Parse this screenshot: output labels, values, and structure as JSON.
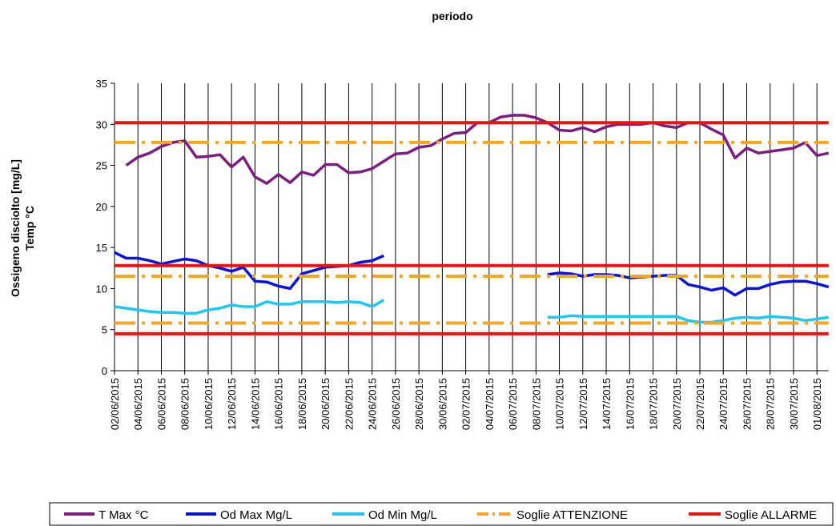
{
  "chart_data": {
    "type": "line",
    "title": "periodo",
    "ylabel": [
      "Ossigeno disciolto [mg/L]",
      "Temp °C"
    ],
    "categories": [
      "02/06/2015",
      null,
      "04/06/2015",
      null,
      "06/06/2015",
      null,
      "08/06/2015",
      null,
      "10/06/2015",
      null,
      "12/06/2015",
      null,
      "14/06/2015",
      null,
      "16/06/2015",
      null,
      "18/06/2015",
      null,
      "20/06/2015",
      null,
      "22/06/2015",
      null,
      "24/06/2015",
      null,
      "26/06/2015",
      null,
      "28/06/2015",
      null,
      "30/06/2015",
      null,
      "02/07/2015",
      null,
      "04/07/2015",
      null,
      "06/07/2015",
      null,
      "08/07/2015",
      null,
      "10/07/2015",
      null,
      "12/07/2015",
      null,
      "14/07/2015",
      null,
      "16/07/2015",
      null,
      "18/07/2015",
      null,
      "20/07/2015",
      null,
      "22/07/2015",
      null,
      "24/07/2015",
      null,
      "26/07/2015",
      null,
      "28/07/2015",
      null,
      "30/07/2015",
      null,
      "01/08/2015",
      null
    ],
    "series": [
      {
        "name": "T Max °C",
        "color": "#7b1f7e",
        "values": [
          null,
          25,
          26,
          26.5,
          27.3,
          27.8,
          28,
          26,
          26.1,
          26.3,
          24.8,
          26,
          23.6,
          22.8,
          23.9,
          22.9,
          24.2,
          23.8,
          25.1,
          25.1,
          24.1,
          24.2,
          24.6,
          25.5,
          26.4,
          26.5,
          27.2,
          27.4,
          28.2,
          28.9,
          29,
          30.2,
          30.2,
          30.9,
          31.1,
          31.1,
          30.8,
          30.2,
          29.3,
          29.2,
          29.6,
          29.1,
          29.7,
          30,
          30,
          30,
          30.2,
          29.8,
          29.6,
          30.2,
          30.2,
          29.4,
          28.7,
          25.9,
          27.1,
          26.5,
          26.7,
          26.9,
          27.1,
          27.8,
          26.2,
          26.5
        ]
      },
      {
        "name": "Od Max Mg/L",
        "color": "#0a14d6",
        "values": [
          14.4,
          13.7,
          13.7,
          13.4,
          13,
          13.3,
          13.6,
          13.4,
          12.8,
          12.5,
          12.1,
          12.6,
          10.9,
          10.8,
          10.3,
          10,
          11.8,
          12.2,
          12.6,
          12.7,
          12.8,
          13.2,
          13.4,
          14,
          null,
          null,
          null,
          null,
          null,
          null,
          null,
          null,
          null,
          null,
          null,
          null,
          null,
          11.7,
          11.9,
          11.8,
          11.5,
          11.7,
          11.7,
          11.6,
          11.3,
          11.4,
          11.5,
          11.6,
          11.6,
          10.5,
          10.2,
          9.8,
          10.1,
          9.2,
          10,
          10,
          10.5,
          10.8,
          10.9,
          10.9,
          10.6,
          10.2
        ]
      },
      {
        "name": "Od Min Mg/L",
        "color": "#1fc8f0",
        "values": [
          7.8,
          7.6,
          7.4,
          7.2,
          7.1,
          7.1,
          7,
          7,
          7.4,
          7.6,
          8,
          7.8,
          7.8,
          8.4,
          8.1,
          8.1,
          8.4,
          8.4,
          8.4,
          8.3,
          8.4,
          8.3,
          7.8,
          8.6,
          null,
          null,
          null,
          null,
          null,
          null,
          null,
          null,
          null,
          null,
          null,
          null,
          null,
          6.5,
          6.5,
          6.7,
          6.6,
          6.6,
          6.6,
          6.6,
          6.6,
          6.6,
          6.6,
          6.6,
          6.6,
          6.1,
          5.9,
          5.9,
          6.1,
          6.4,
          6.5,
          6.4,
          6.6,
          6.5,
          6.4,
          6.1,
          6.3,
          6.5
        ]
      },
      {
        "name": "Soglie ATTENZIONE",
        "color": "#f5a623",
        "dash": "dashdot",
        "levels": [
          27.8,
          11.5,
          5.8
        ]
      },
      {
        "name": "Soglie ALLARME",
        "color": "#ee1111",
        "levels": [
          30.2,
          12.8,
          4.5
        ]
      }
    ],
    "ylim": [
      0,
      35
    ],
    "yticks": [
      0,
      5,
      10,
      15,
      20,
      25,
      30,
      35
    ],
    "grid": "x",
    "legend": "bottom"
  }
}
